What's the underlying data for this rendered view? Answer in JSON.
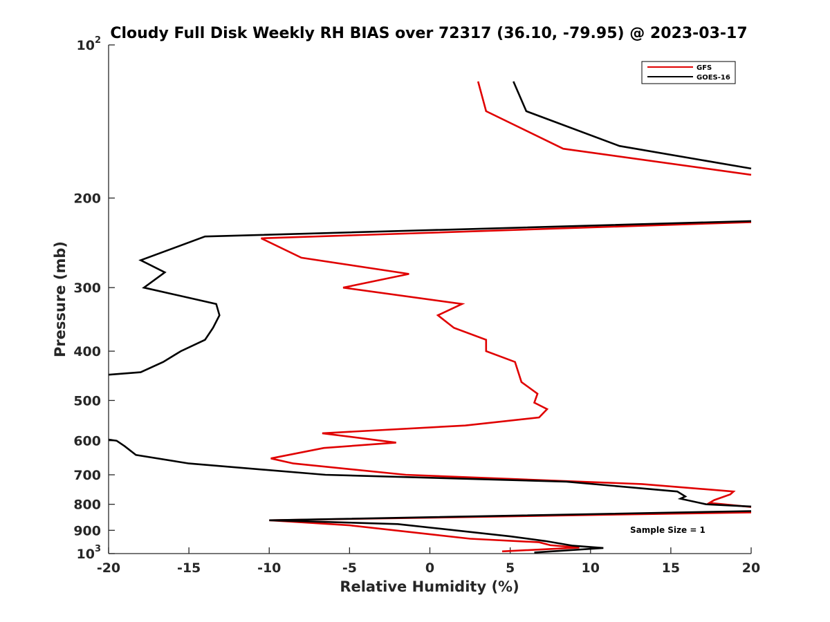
{
  "chart_data": {
    "type": "line",
    "title": "Cloudy Full Disk Weekly RH BIAS over 72317 (36.10, -79.95) @ 2023-03-17",
    "xlabel": "Relative Humidity (%)",
    "ylabel": "Pressure (mb)",
    "xlim": [
      -20,
      20
    ],
    "ylim": [
      100,
      1000
    ],
    "y_scale": "log",
    "y_reversed": true,
    "xticks": [
      "-20",
      "-15",
      "-10",
      "-5",
      "0",
      "5",
      "10",
      "15",
      "20"
    ],
    "yticks": [
      {
        "value": 100,
        "label": "10",
        "sup": "2"
      },
      {
        "value": 200,
        "label": "200",
        "sup": ""
      },
      {
        "value": 300,
        "label": "300",
        "sup": ""
      },
      {
        "value": 400,
        "label": "400",
        "sup": ""
      },
      {
        "value": 500,
        "label": "500",
        "sup": ""
      },
      {
        "value": 600,
        "label": "600",
        "sup": ""
      },
      {
        "value": 700,
        "label": "700",
        "sup": ""
      },
      {
        "value": 800,
        "label": "800",
        "sup": ""
      },
      {
        "value": 900,
        "label": "900",
        "sup": ""
      },
      {
        "value": 1000,
        "label": "10",
        "sup": "3"
      }
    ],
    "grid": false,
    "legend_position": "top-right",
    "annotation": "Sample Size = 1",
    "series": [
      {
        "name": "GFS",
        "color": "#e00000",
        "points": [
          [
            3.0,
            118
          ],
          [
            3.5,
            135
          ],
          [
            8.3,
            160
          ],
          [
            20.0,
            180
          ],
          [
            null,
            null
          ],
          [
            20.0,
            223
          ],
          [
            -10.5,
            240
          ],
          [
            -8.0,
            262
          ],
          [
            -1.3,
            282
          ],
          [
            -5.4,
            300
          ],
          [
            2.0,
            323
          ],
          [
            0.5,
            340
          ],
          [
            1.5,
            360
          ],
          [
            3.5,
            380
          ],
          [
            3.5,
            400
          ],
          [
            5.3,
            420
          ],
          [
            5.7,
            460
          ],
          [
            6.7,
            485
          ],
          [
            6.5,
            505
          ],
          [
            7.3,
            520
          ],
          [
            6.8,
            540
          ],
          [
            2.2,
            560
          ],
          [
            -6.7,
            580
          ],
          [
            -2.1,
            605
          ],
          [
            -6.6,
            620
          ],
          [
            -9.9,
            650
          ],
          [
            -8.5,
            665
          ],
          [
            -1.5,
            700
          ],
          [
            13.2,
            730
          ],
          [
            18.9,
            755
          ],
          [
            18.7,
            765
          ],
          [
            17.7,
            785
          ],
          [
            17.4,
            795
          ],
          [
            20.0,
            810
          ],
          [
            null,
            null
          ],
          [
            20.0,
            830
          ],
          [
            -10.0,
            860
          ],
          [
            -5.0,
            880
          ],
          [
            0.5,
            920
          ],
          [
            2.5,
            935
          ],
          [
            6.8,
            950
          ],
          [
            7.5,
            963
          ],
          [
            9.3,
            973
          ],
          [
            4.5,
            990
          ]
        ]
      },
      {
        "name": "GOES-16",
        "color": "#000000",
        "points": [
          [
            5.2,
            118
          ],
          [
            6.0,
            135
          ],
          [
            11.8,
            158
          ],
          [
            20.0,
            175
          ],
          [
            null,
            null
          ],
          [
            20.0,
            222
          ],
          [
            -14.0,
            238
          ],
          [
            -18.0,
            265
          ],
          [
            -16.5,
            280
          ],
          [
            -17.8,
            300
          ],
          [
            -13.3,
            323
          ],
          [
            -13.1,
            340
          ],
          [
            -13.5,
            360
          ],
          [
            -14.0,
            380
          ],
          [
            -15.5,
            400
          ],
          [
            -16.6,
            420
          ],
          [
            -18.0,
            440
          ],
          [
            -20.0,
            445
          ],
          [
            null,
            null
          ],
          [
            -20.0,
            597
          ],
          [
            -19.5,
            600
          ],
          [
            -19.0,
            615
          ],
          [
            -18.3,
            640
          ],
          [
            -15.0,
            665
          ],
          [
            -6.5,
            700
          ],
          [
            8.5,
            722
          ],
          [
            15.4,
            755
          ],
          [
            15.9,
            772
          ],
          [
            15.6,
            780
          ],
          [
            17.2,
            800
          ],
          [
            20.0,
            808
          ],
          [
            null,
            null
          ],
          [
            20.0,
            825
          ],
          [
            -10.0,
            860
          ],
          [
            -2.0,
            875
          ],
          [
            5.0,
            925
          ],
          [
            7.2,
            945
          ],
          [
            8.9,
            965
          ],
          [
            10.8,
            975
          ],
          [
            6.5,
            995
          ]
        ]
      }
    ]
  }
}
